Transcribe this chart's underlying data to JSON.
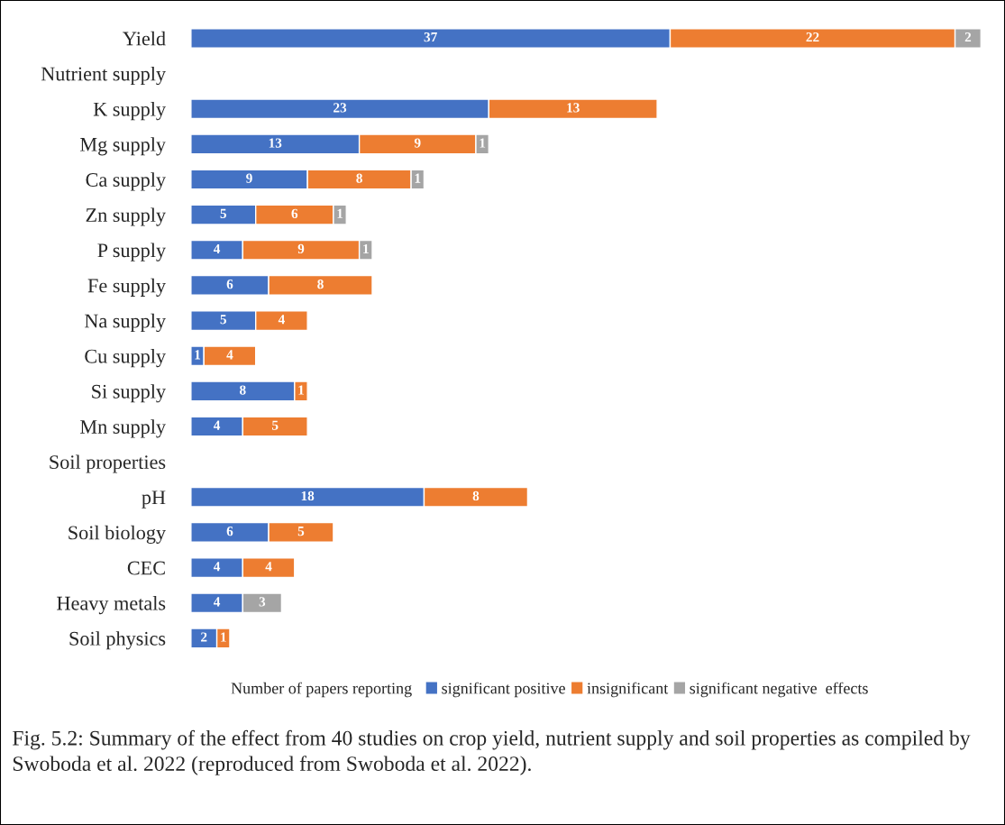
{
  "chart_data": {
    "type": "bar",
    "orientation": "horizontal",
    "stacked": true,
    "data_labels": true,
    "legend": "bottom",
    "grid": false,
    "legend_title": "Number of papers reporting",
    "categories": [
      "Yield",
      "Nutrient supply",
      "K supply",
      "Mg supply",
      "Ca supply",
      "Zn supply",
      "P supply",
      "Fe supply",
      "Na supply",
      "Cu supply",
      "Si supply",
      "Mn supply",
      "Soil properties",
      "pH",
      "Soil biology",
      "CEC",
      "Heavy metals",
      "Soil physics"
    ],
    "series": [
      {
        "name": "significant positive",
        "color": "#4472c4",
        "values": [
          37,
          null,
          23,
          13,
          9,
          5,
          4,
          6,
          5,
          1,
          8,
          4,
          null,
          18,
          6,
          4,
          4,
          2
        ]
      },
      {
        "name": "insignificant",
        "color": "#ed7d31",
        "values": [
          22,
          null,
          13,
          9,
          8,
          6,
          9,
          8,
          4,
          4,
          1,
          5,
          null,
          8,
          5,
          4,
          null,
          1
        ]
      },
      {
        "name": "significant negative  effects",
        "color": "#a5a5a5",
        "values": [
          2,
          null,
          null,
          1,
          1,
          1,
          1,
          null,
          null,
          null,
          null,
          null,
          null,
          null,
          null,
          null,
          3,
          null
        ]
      }
    ],
    "annotations": [
      "Fig. 5.2: Summary of the effect from 40 studies on crop yield, nutrient supply and soil properties as compiled by Swoboda et al. 2022 (reproduced from Swoboda et al. 2022)."
    ]
  }
}
